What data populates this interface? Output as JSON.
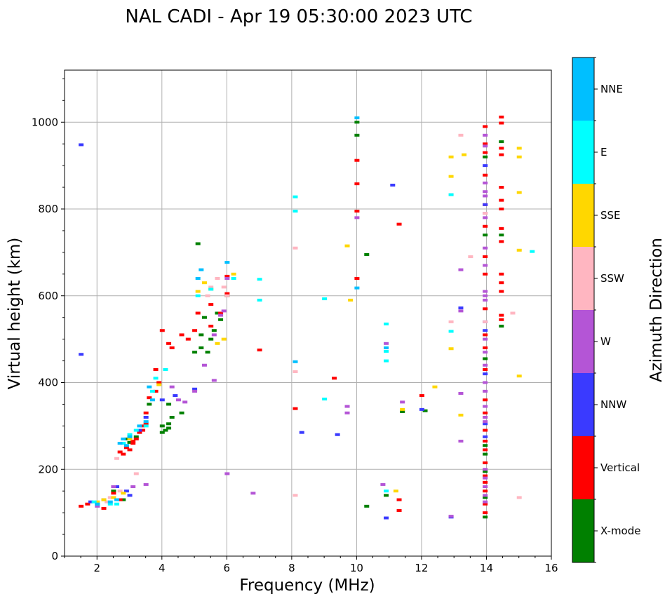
{
  "chart_data": {
    "type": "scatter",
    "title": "NAL CADI - Apr 19 05:30:00 2023 UTC",
    "xlabel": "Frequency (MHz)",
    "ylabel": "Virtual height (km)",
    "xlim": [
      1,
      16
    ],
    "ylim": [
      0,
      1120
    ],
    "xticks": [
      2,
      4,
      6,
      8,
      10,
      12,
      14,
      16
    ],
    "yticks": [
      0,
      200,
      400,
      600,
      800,
      1000
    ],
    "grid": true,
    "colorbar": {
      "title": "Azimuth Direction",
      "categories": [
        {
          "name": "X-mode",
          "color": "#008000"
        },
        {
          "name": "Vertical",
          "color": "#ff0000"
        },
        {
          "name": "NNW",
          "color": "#3a3aff"
        },
        {
          "name": "W",
          "color": "#b455d6"
        },
        {
          "name": "SSW",
          "color": "#ffb6c1"
        },
        {
          "name": "SSE",
          "color": "#ffd700"
        },
        {
          "name": "E",
          "color": "#00ffff"
        },
        {
          "name": "NNE",
          "color": "#00bfff"
        }
      ]
    },
    "series": [
      {
        "name": "X-mode",
        "points": [
          [
            2.9,
            270
          ],
          [
            3.0,
            262
          ],
          [
            3.2,
            275
          ],
          [
            3.6,
            350
          ],
          [
            4.0,
            300
          ],
          [
            4.0,
            285
          ],
          [
            4.1,
            290
          ],
          [
            4.2,
            295
          ],
          [
            4.2,
            305
          ],
          [
            4.2,
            350
          ],
          [
            4.3,
            320
          ],
          [
            4.6,
            330
          ],
          [
            5.0,
            470
          ],
          [
            5.2,
            480
          ],
          [
            5.2,
            510
          ],
          [
            5.3,
            550
          ],
          [
            5.4,
            470
          ],
          [
            5.5,
            500
          ],
          [
            5.6,
            520
          ],
          [
            5.7,
            560
          ],
          [
            5.8,
            545
          ],
          [
            6.0,
            600
          ],
          [
            5.1,
            720
          ],
          [
            10.0,
            1000
          ],
          [
            10.0,
            970
          ],
          [
            10.3,
            695
          ],
          [
            10.3,
            115
          ],
          [
            11.4,
            333
          ],
          [
            12.1,
            335
          ],
          [
            13.95,
            90
          ],
          [
            13.95,
            135
          ],
          [
            13.95,
            195
          ],
          [
            13.95,
            255
          ],
          [
            13.95,
            235
          ],
          [
            13.95,
            455
          ],
          [
            13.95,
            740
          ],
          [
            13.95,
            920
          ],
          [
            14.45,
            955
          ],
          [
            14.45,
            740
          ],
          [
            14.45,
            530
          ],
          [
            10.9,
            140
          ],
          [
            2.5,
            150
          ],
          [
            2.8,
            130
          ]
        ]
      },
      {
        "name": "Vertical",
        "points": [
          [
            1.5,
            115
          ],
          [
            1.7,
            120
          ],
          [
            2.2,
            110
          ],
          [
            2.5,
            145
          ],
          [
            2.7,
            130
          ],
          [
            2.7,
            240
          ],
          [
            2.8,
            235
          ],
          [
            2.9,
            250
          ],
          [
            3.0,
            245
          ],
          [
            3.1,
            260
          ],
          [
            3.1,
            265
          ],
          [
            3.2,
            270
          ],
          [
            3.3,
            285
          ],
          [
            3.4,
            290
          ],
          [
            3.4,
            300
          ],
          [
            3.5,
            305
          ],
          [
            3.5,
            330
          ],
          [
            3.6,
            365
          ],
          [
            3.8,
            430
          ],
          [
            3.8,
            380
          ],
          [
            3.9,
            400
          ],
          [
            4.0,
            520
          ],
          [
            4.2,
            490
          ],
          [
            4.3,
            480
          ],
          [
            4.6,
            510
          ],
          [
            4.8,
            500
          ],
          [
            5.0,
            520
          ],
          [
            5.1,
            560
          ],
          [
            5.5,
            530
          ],
          [
            5.5,
            580
          ],
          [
            5.8,
            560
          ],
          [
            6.0,
            605
          ],
          [
            6.0,
            645
          ],
          [
            7.0,
            475
          ],
          [
            8.1,
            340
          ],
          [
            9.3,
            410
          ],
          [
            10.0,
            912
          ],
          [
            10.0,
            858
          ],
          [
            10.0,
            795
          ],
          [
            10.0,
            640
          ],
          [
            11.3,
            765
          ],
          [
            11.3,
            130
          ],
          [
            11.3,
            105
          ],
          [
            12.0,
            370
          ],
          [
            13.95,
            990
          ],
          [
            13.95,
            950
          ],
          [
            13.95,
            930
          ],
          [
            13.95,
            878
          ],
          [
            13.95,
            810
          ],
          [
            13.95,
            760
          ],
          [
            13.95,
            690
          ],
          [
            13.95,
            650
          ],
          [
            13.95,
            570
          ],
          [
            13.95,
            510
          ],
          [
            13.95,
            480
          ],
          [
            13.95,
            430
          ],
          [
            13.95,
            360
          ],
          [
            13.95,
            330
          ],
          [
            13.95,
            290
          ],
          [
            13.95,
            265
          ],
          [
            13.95,
            245
          ],
          [
            13.95,
            215
          ],
          [
            13.95,
            185
          ],
          [
            13.95,
            170
          ],
          [
            13.95,
            150
          ],
          [
            13.95,
            120
          ],
          [
            13.95,
            100
          ],
          [
            14.45,
            1012
          ],
          [
            14.45,
            998
          ],
          [
            14.45,
            925
          ],
          [
            14.45,
            940
          ],
          [
            14.45,
            850
          ],
          [
            14.45,
            820
          ],
          [
            14.45,
            800
          ],
          [
            14.45,
            755
          ],
          [
            14.45,
            725
          ],
          [
            14.45,
            650
          ],
          [
            14.45,
            630
          ],
          [
            14.45,
            610
          ],
          [
            14.45,
            555
          ],
          [
            14.45,
            545
          ]
        ]
      },
      {
        "name": "NNW",
        "points": [
          [
            1.5,
            948
          ],
          [
            1.5,
            465
          ],
          [
            1.8,
            125
          ],
          [
            2.2,
            130
          ],
          [
            2.6,
            160
          ],
          [
            2.9,
            150
          ],
          [
            3.0,
            140
          ],
          [
            3.3,
            290
          ],
          [
            3.5,
            320
          ],
          [
            4.0,
            360
          ],
          [
            4.4,
            370
          ],
          [
            5.0,
            385
          ],
          [
            8.3,
            285
          ],
          [
            9.4,
            280
          ],
          [
            10.9,
            88
          ],
          [
            11.1,
            855
          ],
          [
            12.9,
            90
          ],
          [
            13.2,
            572
          ],
          [
            13.95,
            540
          ],
          [
            13.95,
            520
          ],
          [
            13.95,
            420
          ],
          [
            13.95,
            305
          ],
          [
            13.95,
            275
          ],
          [
            12.0,
            338
          ],
          [
            13.95,
            810
          ],
          [
            13.95,
            900
          ]
        ]
      },
      {
        "name": "W",
        "points": [
          [
            2.0,
            115
          ],
          [
            2.5,
            160
          ],
          [
            3.1,
            160
          ],
          [
            3.5,
            165
          ],
          [
            4.3,
            390
          ],
          [
            4.5,
            360
          ],
          [
            4.7,
            355
          ],
          [
            5.0,
            380
          ],
          [
            5.3,
            440
          ],
          [
            5.6,
            510
          ],
          [
            5.6,
            405
          ],
          [
            5.8,
            555
          ],
          [
            5.9,
            565
          ],
          [
            6.0,
            190
          ],
          [
            6.0,
            640
          ],
          [
            6.8,
            145
          ],
          [
            9.7,
            345
          ],
          [
            9.7,
            330
          ],
          [
            10.0,
            780
          ],
          [
            10.8,
            165
          ],
          [
            10.9,
            490
          ],
          [
            11.4,
            355
          ],
          [
            12.9,
            92
          ],
          [
            13.2,
            660
          ],
          [
            13.2,
            375
          ],
          [
            13.2,
            265
          ],
          [
            13.2,
            565
          ],
          [
            13.95,
            970
          ],
          [
            13.95,
            945
          ],
          [
            13.95,
            860
          ],
          [
            13.95,
            840
          ],
          [
            13.95,
            830
          ],
          [
            13.95,
            790
          ],
          [
            13.95,
            780
          ],
          [
            13.95,
            710
          ],
          [
            13.95,
            670
          ],
          [
            13.95,
            610
          ],
          [
            13.95,
            600
          ],
          [
            13.95,
            590
          ],
          [
            13.95,
            500
          ],
          [
            13.95,
            470
          ],
          [
            13.95,
            440
          ],
          [
            13.95,
            400
          ],
          [
            13.95,
            380
          ],
          [
            13.95,
            345
          ],
          [
            13.95,
            320
          ],
          [
            13.95,
            310
          ],
          [
            13.95,
            200
          ],
          [
            13.95,
            180
          ],
          [
            13.95,
            160
          ],
          [
            13.95,
            140
          ],
          [
            13.95,
            125
          ]
        ]
      },
      {
        "name": "SSW",
        "points": [
          [
            2.3,
            125
          ],
          [
            2.4,
            135
          ],
          [
            2.6,
            225
          ],
          [
            2.7,
            150
          ],
          [
            3.2,
            190
          ],
          [
            5.4,
            600
          ],
          [
            5.5,
            620
          ],
          [
            5.7,
            640
          ],
          [
            5.9,
            620
          ],
          [
            6.0,
            600
          ],
          [
            8.1,
            710
          ],
          [
            8.1,
            425
          ],
          [
            8.1,
            140
          ],
          [
            12.9,
            540
          ],
          [
            12.9,
            833
          ],
          [
            13.2,
            970
          ],
          [
            13.5,
            690
          ],
          [
            15.0,
            135
          ],
          [
            14.8,
            560
          ],
          [
            13.95,
            790
          ],
          [
            13.95,
            540
          ]
        ]
      },
      {
        "name": "SSE",
        "points": [
          [
            2.0,
            125
          ],
          [
            2.2,
            130
          ],
          [
            2.5,
            135
          ],
          [
            2.8,
            145
          ],
          [
            3.0,
            270
          ],
          [
            3.9,
            395
          ],
          [
            5.1,
            610
          ],
          [
            5.3,
            630
          ],
          [
            5.5,
            615
          ],
          [
            5.7,
            490
          ],
          [
            5.9,
            500
          ],
          [
            6.2,
            650
          ],
          [
            9.7,
            715
          ],
          [
            9.8,
            590
          ],
          [
            11.2,
            150
          ],
          [
            11.4,
            338
          ],
          [
            12.4,
            390
          ],
          [
            12.9,
            920
          ],
          [
            12.9,
            875
          ],
          [
            12.9,
            478
          ],
          [
            13.3,
            925
          ],
          [
            13.2,
            325
          ],
          [
            15.0,
            940
          ],
          [
            15.0,
            920
          ],
          [
            15.0,
            838
          ],
          [
            15.0,
            705
          ],
          [
            15.0,
            415
          ]
        ]
      },
      {
        "name": "E",
        "points": [
          [
            1.9,
            125
          ],
          [
            2.0,
            120
          ],
          [
            2.4,
            120
          ],
          [
            2.6,
            120
          ],
          [
            2.8,
            260
          ],
          [
            3.0,
            280
          ],
          [
            3.2,
            290
          ],
          [
            3.5,
            300
          ],
          [
            3.7,
            380
          ],
          [
            3.8,
            410
          ],
          [
            4.1,
            430
          ],
          [
            5.1,
            600
          ],
          [
            5.5,
            615
          ],
          [
            6.2,
            640
          ],
          [
            7.0,
            638
          ],
          [
            7.0,
            590
          ],
          [
            8.1,
            828
          ],
          [
            8.1,
            795
          ],
          [
            9.0,
            593
          ],
          [
            9.0,
            362
          ],
          [
            10.9,
            535
          ],
          [
            10.9,
            472
          ],
          [
            10.9,
            450
          ],
          [
            10.9,
            150
          ],
          [
            12.9,
            833
          ],
          [
            12.9,
            518
          ],
          [
            15.4,
            702
          ]
        ]
      },
      {
        "name": "NNE",
        "points": [
          [
            2.0,
            120
          ],
          [
            2.4,
            125
          ],
          [
            2.6,
            130
          ],
          [
            2.7,
            260
          ],
          [
            2.8,
            270
          ],
          [
            2.9,
            255
          ],
          [
            3.0,
            275
          ],
          [
            3.3,
            300
          ],
          [
            3.5,
            310
          ],
          [
            3.6,
            390
          ],
          [
            3.7,
            360
          ],
          [
            5.1,
            640
          ],
          [
            5.2,
            660
          ],
          [
            6.0,
            677
          ],
          [
            10.0,
            1010
          ],
          [
            10.0,
            618
          ],
          [
            10.9,
            480
          ],
          [
            8.1,
            448
          ]
        ]
      }
    ]
  }
}
